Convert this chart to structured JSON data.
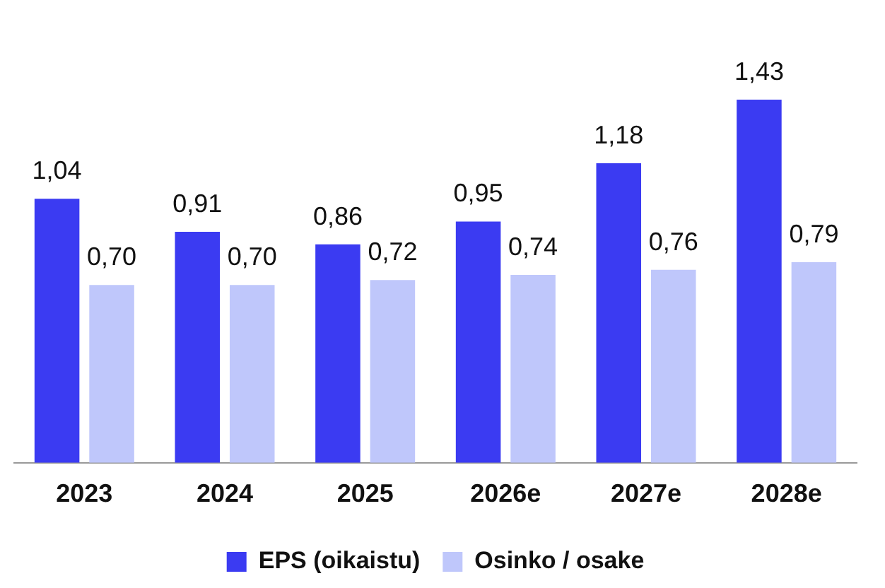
{
  "chart_data": {
    "type": "bar",
    "categories": [
      "2023",
      "2024",
      "2025",
      "2026e",
      "2027e",
      "2028e"
    ],
    "series": [
      {
        "name": "EPS (oikaistu)",
        "color": "#3b3bf2",
        "values": [
          1.04,
          0.91,
          0.86,
          0.95,
          1.18,
          1.43
        ],
        "value_labels": [
          "1,04",
          "0,91",
          "0,86",
          "0,95",
          "1,18",
          "1,43"
        ]
      },
      {
        "name": "Osinko / osake",
        "color": "#bfc7fb",
        "values": [
          0.7,
          0.7,
          0.72,
          0.74,
          0.76,
          0.79
        ],
        "value_labels": [
          "0,70",
          "0,70",
          "0,72",
          "0,74",
          "0,76",
          "0,79"
        ]
      }
    ],
    "grid": false,
    "legend": "bottom",
    "tick_labels": "x"
  }
}
